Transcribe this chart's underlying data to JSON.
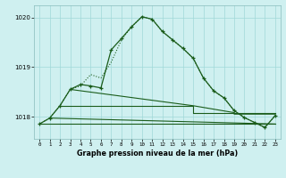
{
  "title": "Graphe pression niveau de la mer (hPa)",
  "bg_color": "#cff0f0",
  "grid_color": "#a0d8d8",
  "line_color": "#1a5c1a",
  "x_ticks": [
    0,
    1,
    2,
    3,
    4,
    5,
    6,
    7,
    8,
    9,
    10,
    11,
    12,
    13,
    14,
    15,
    16,
    17,
    18,
    19,
    20,
    21,
    22,
    23
  ],
  "y_ticks": [
    1018,
    1019,
    1020
  ],
  "ylim": [
    1017.55,
    1020.25
  ],
  "xlim": [
    -0.5,
    23.5
  ],
  "main_line_x": [
    0,
    1,
    2,
    3,
    4,
    5,
    6,
    7,
    8,
    9,
    10,
    11,
    12,
    13,
    14,
    15,
    16,
    17,
    18,
    19,
    20,
    21,
    22,
    23
  ],
  "main_line_y": [
    1017.85,
    1017.97,
    1018.22,
    1018.55,
    1018.65,
    1018.62,
    1018.58,
    1019.35,
    1019.58,
    1019.82,
    1020.02,
    1019.97,
    1019.72,
    1019.55,
    1019.38,
    1019.18,
    1018.78,
    1018.52,
    1018.38,
    1018.12,
    1017.98,
    1017.88,
    1017.78,
    1018.02
  ],
  "dotted_line_y": [
    1017.85,
    1017.97,
    1018.22,
    1018.55,
    1018.65,
    1018.62,
    1018.58,
    1019.35,
    1019.58,
    1019.82,
    1020.02,
    1019.97,
    1019.72,
    1019.55,
    1019.38,
    1019.18,
    1018.78,
    1018.52,
    1018.38,
    1018.12,
    1017.98,
    1017.88,
    1017.78,
    1018.02
  ],
  "ref_line1_x": [
    0,
    23
  ],
  "ref_line1_y": [
    1017.85,
    1017.85
  ],
  "ref_line2_x": [
    1,
    21
  ],
  "ref_line2_y": [
    1017.97,
    1017.85
  ],
  "ref_line3_x": [
    2,
    19
  ],
  "ref_line3_y": [
    1018.22,
    1018.08
  ],
  "ref_line4_x": [
    3,
    19
  ],
  "ref_line4_y": [
    1018.55,
    1018.05
  ],
  "figsize": [
    3.2,
    2.0
  ],
  "dpi": 100
}
